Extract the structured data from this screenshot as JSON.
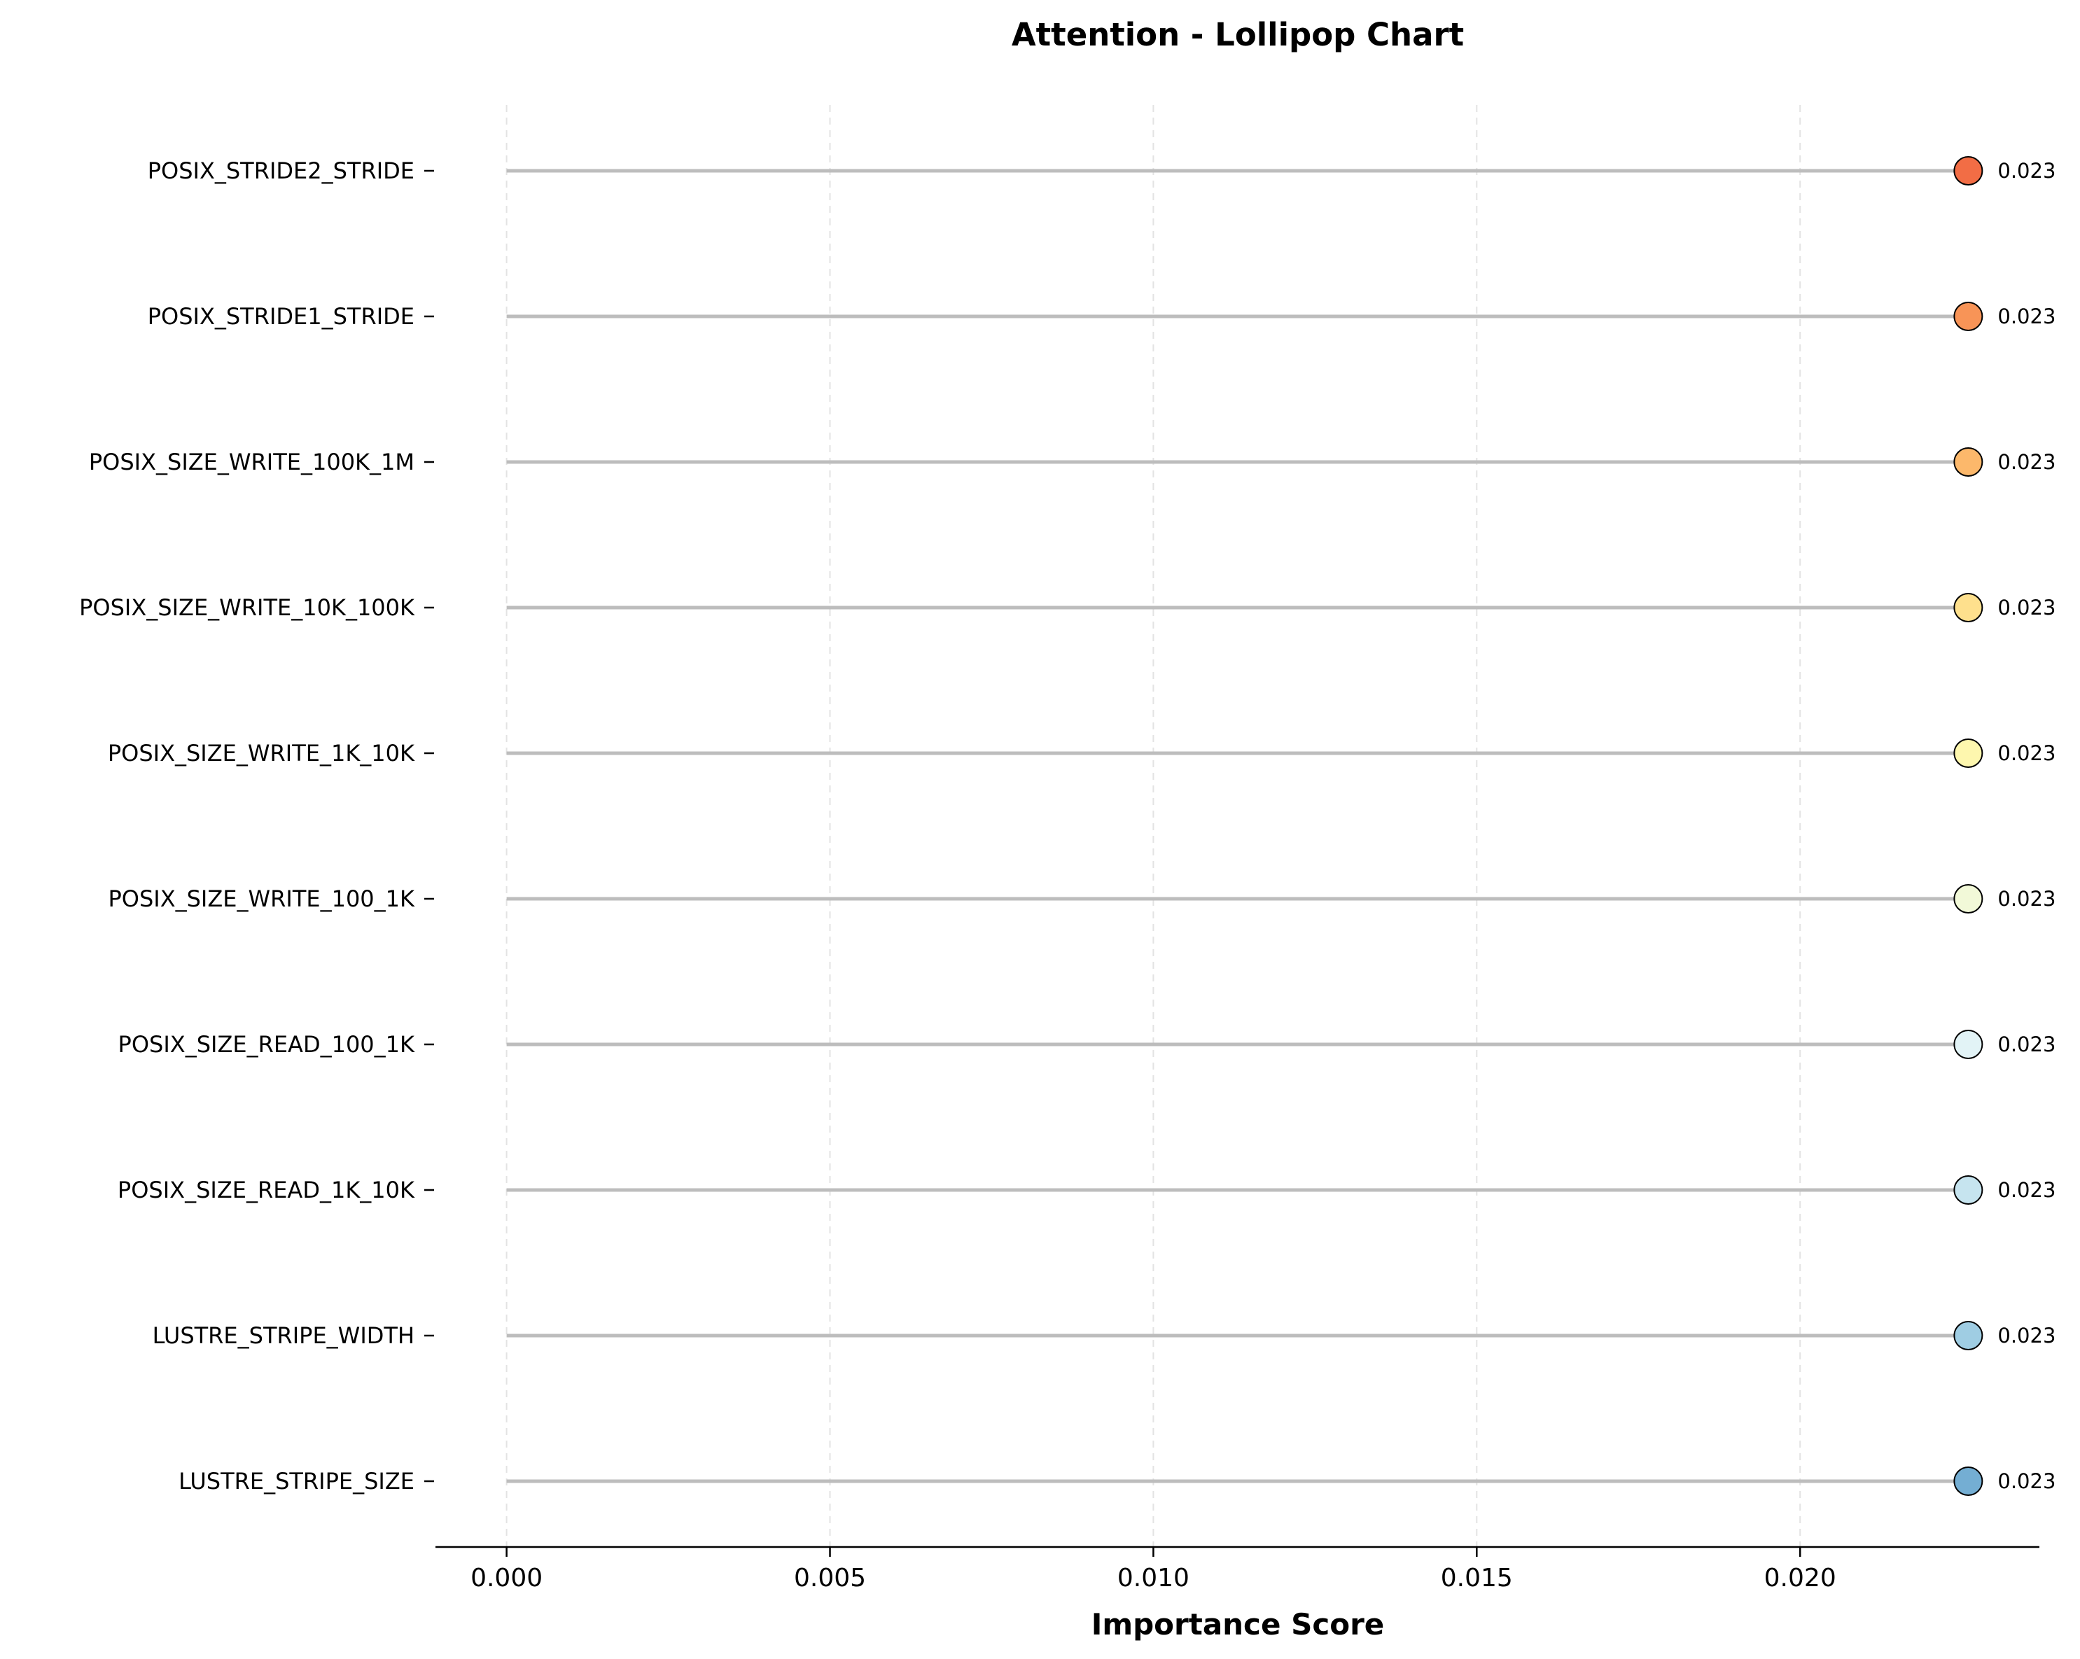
{
  "chart_data": {
    "type": "lollipop",
    "title": "Attention - Lollipop Chart",
    "xlabel": "Importance Score",
    "ylabel": "",
    "xlim": [
      -0.0011,
      0.0237
    ],
    "xticks": [
      "0.000",
      "0.005",
      "0.010",
      "0.015",
      "0.020"
    ],
    "xtick_values": [
      0.0,
      0.005,
      0.01,
      0.015,
      0.02
    ],
    "grid": "x-dashed",
    "categories": [
      "POSIX_STRIDE2_STRIDE",
      "POSIX_STRIDE1_STRIDE",
      "POSIX_SIZE_WRITE_100K_1M",
      "POSIX_SIZE_WRITE_10K_100K",
      "POSIX_SIZE_WRITE_1K_10K",
      "POSIX_SIZE_WRITE_100_1K",
      "POSIX_SIZE_READ_100_1K",
      "POSIX_SIZE_READ_1K_10K",
      "LUSTRE_STRIPE_WIDTH",
      "LUSTRE_STRIPE_SIZE"
    ],
    "values": [
      0.0226,
      0.0226,
      0.0226,
      0.0226,
      0.0226,
      0.0226,
      0.0226,
      0.0226,
      0.0226,
      0.0226
    ],
    "value_labels": [
      "0.023",
      "0.023",
      "0.023",
      "0.023",
      "0.023",
      "0.023",
      "0.023",
      "0.023",
      "0.023",
      "0.023"
    ],
    "colors": [
      "#f26d45",
      "#f89457",
      "#fcb86b",
      "#fee08d",
      "#fef7ae",
      "#f2f9d8",
      "#e2f3f6",
      "#c6e4ef",
      "#9fcde3",
      "#74aed3"
    ],
    "stem_color": "#bdbdbd",
    "marker_edge_color": "#000000"
  }
}
